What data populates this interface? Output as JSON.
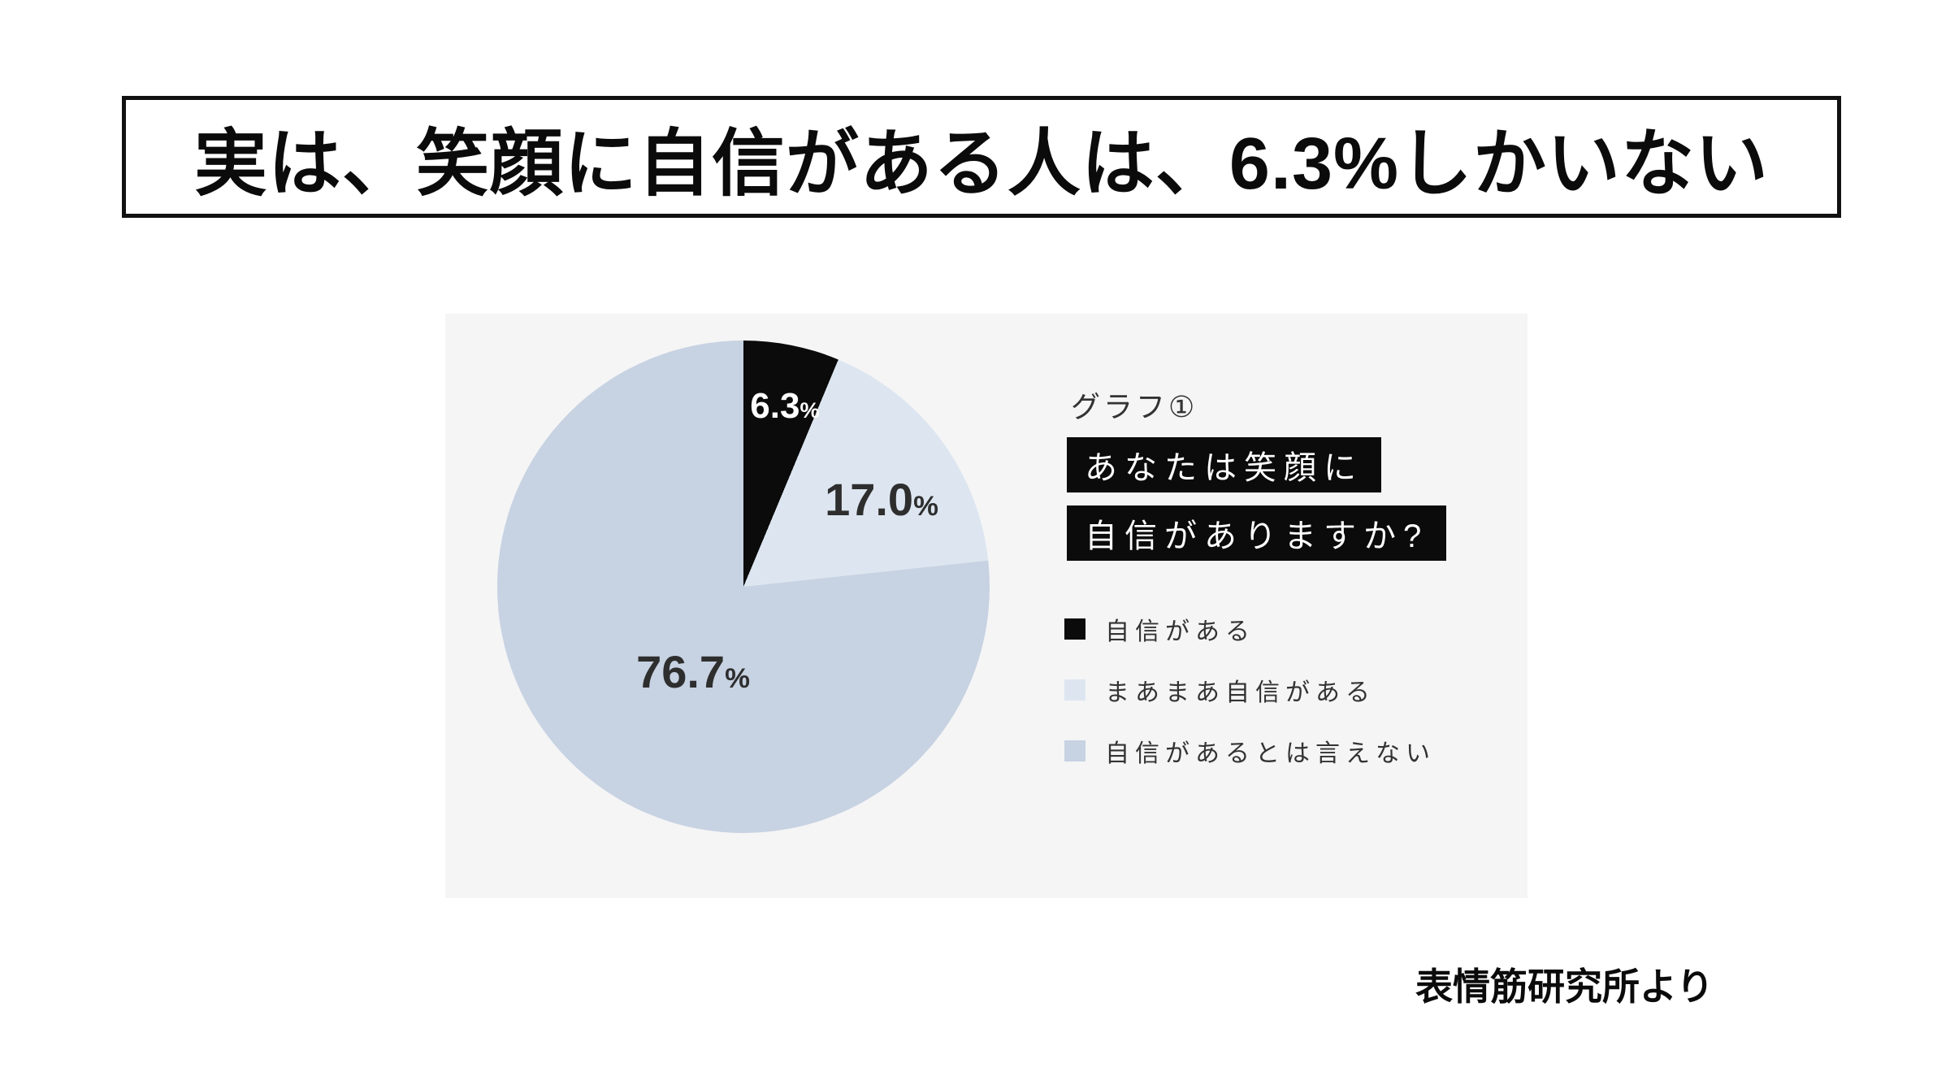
{
  "slide": {
    "title": "実は、笑顔に自信がある人は、6.3%しかいない",
    "source_credit": "表情筋研究所より"
  },
  "chart_panel": {
    "graph_label": "グラフ①",
    "question_line1": "あなたは笑顔に",
    "question_line2": "自信がありますか?"
  },
  "colors": {
    "panel_bg": "#f5f5f6",
    "question_box_bg": "#0b0b0b",
    "question_box_text": "#ffffff",
    "title_border": "#111111",
    "body_text": "#333333"
  },
  "chart_data": {
    "type": "pie",
    "title": "あなたは笑顔に自信がありますか?",
    "unit": "%",
    "start_angle": "12-o'clock, clockwise",
    "legend_position": "right",
    "slices": [
      {
        "label": "自信がある",
        "value": 6.3,
        "display": "6.3",
        "unit": "%",
        "color": "#0b0b0b"
      },
      {
        "label": "まあまあ自信がある",
        "value": 17.0,
        "display": "17.0",
        "unit": "%",
        "color": "#dde6f0"
      },
      {
        "label": "自信があるとは言えない",
        "value": 76.7,
        "display": "76.7",
        "unit": "%",
        "color": "#c7d2e2"
      }
    ]
  }
}
